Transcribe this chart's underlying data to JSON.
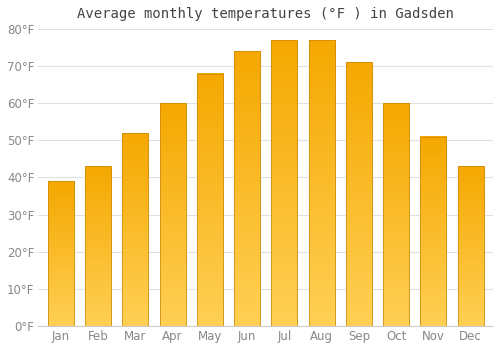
{
  "title": "Average monthly temperatures (°F ) in Gadsden",
  "months": [
    "Jan",
    "Feb",
    "Mar",
    "Apr",
    "May",
    "Jun",
    "Jul",
    "Aug",
    "Sep",
    "Oct",
    "Nov",
    "Dec"
  ],
  "values": [
    39,
    43,
    52,
    60,
    68,
    74,
    77,
    77,
    71,
    60,
    51,
    43
  ],
  "color_bottom": "#FFD055",
  "color_top": "#F5A800",
  "bar_edge_color": "#C8860A",
  "ylim": [
    0,
    80
  ],
  "yticks": [
    0,
    10,
    20,
    30,
    40,
    50,
    60,
    70,
    80
  ],
  "ytick_labels": [
    "0°F",
    "10°F",
    "20°F",
    "30°F",
    "40°F",
    "50°F",
    "60°F",
    "70°F",
    "80°F"
  ],
  "background_color": "#ffffff",
  "grid_color": "#e0e0e0",
  "title_fontsize": 10,
  "tick_fontsize": 8.5,
  "bar_width": 0.7
}
